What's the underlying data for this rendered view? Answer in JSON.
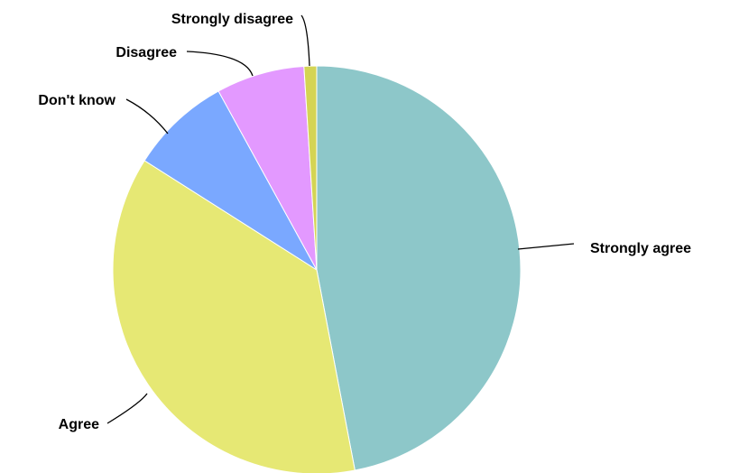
{
  "chart_data": {
    "type": "pie",
    "title": "",
    "slices": [
      {
        "label": "Strongly agree",
        "value": 47,
        "color": "#8DC7C9"
      },
      {
        "label": "Agree",
        "value": 37,
        "color": "#E6E874"
      },
      {
        "label": "Don't know",
        "value": 8,
        "color": "#7AA8FF"
      },
      {
        "label": "Disagree",
        "value": 7,
        "color": "#E399FF"
      },
      {
        "label": "Strongly disagree",
        "value": 1,
        "color": "#D4D454"
      }
    ],
    "legend": "none",
    "labels": "outside with leader lines"
  }
}
